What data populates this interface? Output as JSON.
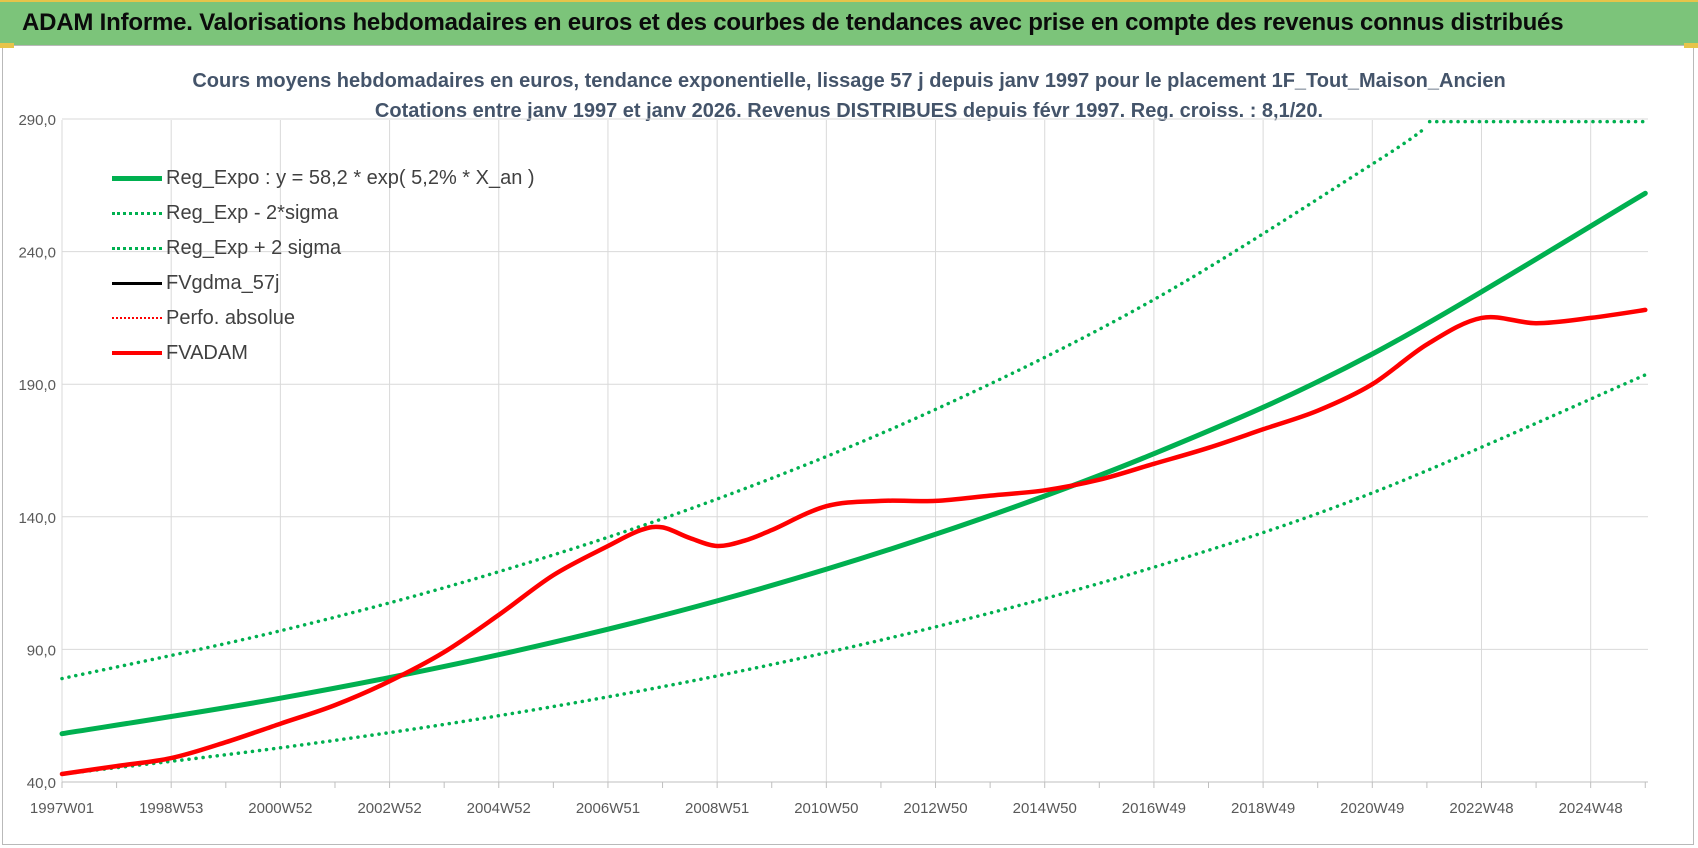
{
  "banner": {
    "title": "ADAM Informe. Valorisations hebdomadaires en euros et des courbes de tendances avec prise en compte des revenus connus distribués"
  },
  "chart_data": {
    "type": "line",
    "title": "Cours moyens hebdomadaires en euros, tendance exponentielle, lissage 57 j depuis janv 1997 pour le placement 1F_Tout_Maison_Ancien",
    "subtitle": "Cotations entre janv 1997 et janv 2026. Revenus DISTRIBUES depuis févr 1997. Reg. croiss. : 8,1/20.",
    "xlabel": "",
    "ylabel": "",
    "x_range": [
      1997.0,
      2026.05
    ],
    "ylim": [
      40,
      290
    ],
    "yticks": [
      "40,0",
      "90,0",
      "140,0",
      "190,0",
      "240,0",
      "290,0"
    ],
    "ytick_values": [
      40,
      90,
      140,
      190,
      240,
      290
    ],
    "xticks": [
      "1997W01",
      "1998W53",
      "2000W52",
      "2002W52",
      "2004W52",
      "2006W51",
      "2008W51",
      "2010W50",
      "2012W50",
      "2014W50",
      "2016W49",
      "2018W49",
      "2020W49",
      "2022W48",
      "2024W48"
    ],
    "xtick_values": [
      1997.0,
      1999.0,
      2001.0,
      2003.0,
      2005.0,
      2007.0,
      2009.0,
      2011.0,
      2013.0,
      2015.0,
      2017.0,
      2019.0,
      2021.0,
      2023.0,
      2025.0
    ],
    "grid": true,
    "legend_position": "top-left",
    "series": [
      {
        "name": "Reg_Expo : y = 58,2 * exp( 5,2% *  X_an )",
        "color": "#00b050",
        "style": "solid",
        "width": 5,
        "x": [
          1997.0,
          2001.0,
          2005.0,
          2009.0,
          2013.0,
          2017.0,
          2021.0,
          2026.0
        ],
        "values": [
          58.2,
          71.6,
          88.0,
          108.3,
          133.4,
          163.8,
          201.4,
          262.0
        ]
      },
      {
        "name": "Reg_Exp - 2*sigma",
        "color": "#00b050",
        "style": "dotted",
        "width": 3.5,
        "x": [
          1997.0,
          2001.0,
          2005.0,
          2009.0,
          2013.0,
          2017.0,
          2021.0,
          2026.0
        ],
        "values": [
          43.0,
          52.9,
          65.0,
          80.0,
          98.5,
          121.0,
          149.0,
          193.5
        ]
      },
      {
        "name": "Reg_Exp + 2 sigma",
        "color": "#00b050",
        "style": "dotted",
        "width": 3.5,
        "x": [
          1997.0,
          2001.0,
          2005.0,
          2009.0,
          2013.0,
          2017.0,
          2021.0,
          2022.0
        ],
        "values": [
          79.0,
          97.0,
          119.3,
          146.7,
          180.5,
          221.9,
          273.0,
          287.0
        ]
      },
      {
        "name": "FVgdma_57j",
        "color": "#000000",
        "style": "solid",
        "width": 3,
        "x": [],
        "values": []
      },
      {
        "name": "Perfo. absolue",
        "color": "#ff0000",
        "style": "dotted",
        "width": 2,
        "x": [],
        "values": []
      },
      {
        "name": "FVADAM",
        "color": "#ff0000",
        "style": "solid",
        "width": 4.5,
        "x": [
          1997.0,
          1998.0,
          1999.0,
          2000.0,
          2001.0,
          2002.0,
          2003.0,
          2004.0,
          2005.0,
          2006.0,
          2007.0,
          2007.6,
          2008.0,
          2008.5,
          2009.0,
          2009.5,
          2010.0,
          2011.0,
          2012.0,
          2013.0,
          2014.0,
          2015.0,
          2016.0,
          2017.0,
          2018.0,
          2019.0,
          2020.0,
          2021.0,
          2022.0,
          2023.0,
          2024.0,
          2025.0,
          2026.0
        ],
        "values": [
          43.0,
          46.0,
          49.0,
          55.0,
          62.0,
          69.0,
          78.0,
          89.0,
          103.0,
          118.0,
          129.0,
          135.0,
          136.0,
          132.0,
          129.0,
          131.0,
          135.0,
          144.0,
          146.0,
          146.0,
          148.0,
          150.0,
          154.0,
          160.0,
          166.0,
          173.0,
          180.0,
          190.0,
          205.0,
          215.0,
          213.0,
          215.0,
          218.0
        ]
      }
    ]
  }
}
